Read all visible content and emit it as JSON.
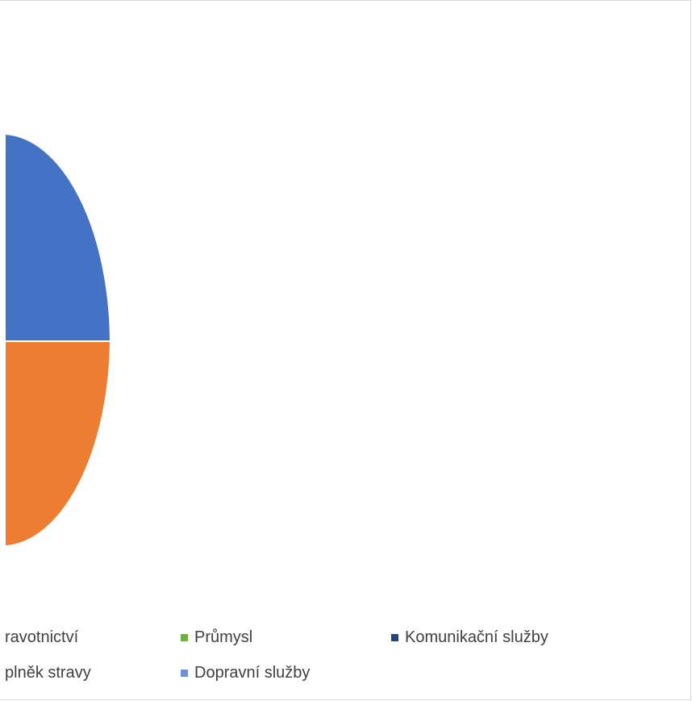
{
  "chart_data": {
    "type": "pie",
    "slices": [
      {
        "label": "ravotnictví",
        "color": "#4472c4",
        "visible_part": "upper-right quarter"
      },
      {
        "label": "plněk stravy",
        "color": "#ed7d31",
        "visible_part": "lower-right quarter"
      },
      {
        "label": "Průmysl",
        "color": "#70ad47"
      },
      {
        "label": "Komunikační služby",
        "color": "#264478"
      },
      {
        "label": "Dopravní služby",
        "color": "#6f8fd6"
      }
    ],
    "legend": {
      "position": "bottom",
      "items": [
        {
          "label": "ravotnictví",
          "color": "#4472c4"
        },
        {
          "label": "Průmysl",
          "color": "#70ad47"
        },
        {
          "label": "Komunikační služby",
          "color": "#264478"
        },
        {
          "label": "plněk stravy",
          "color": "#ed7d31"
        },
        {
          "label": "Dopravní služby",
          "color": "#6f8fd6"
        }
      ]
    }
  }
}
